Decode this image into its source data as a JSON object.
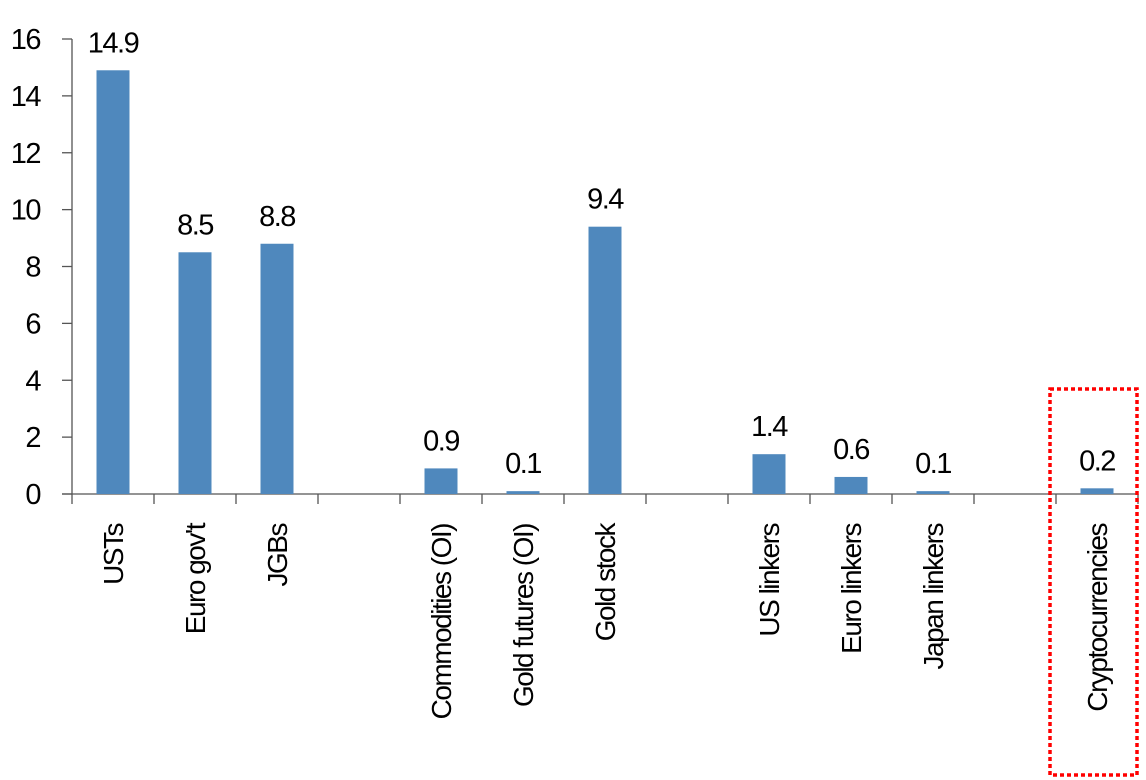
{
  "chart_data": {
    "type": "bar",
    "categories": [
      "USTs",
      "Euro gov't",
      "JGBs",
      "",
      "Commodities (OI)",
      "Gold futures (OI)",
      "Gold stock",
      "",
      "US linkers",
      "Euro linkers",
      "Japan linkers",
      "",
      "Cryptocurrencies"
    ],
    "values": [
      14.9,
      8.5,
      8.8,
      null,
      0.9,
      0.1,
      9.4,
      null,
      1.4,
      0.6,
      0.1,
      null,
      0.2
    ],
    "data_labels": [
      "14.9",
      "8.5",
      "8.8",
      "",
      "0.9",
      "0.1",
      "9.4",
      "",
      "1.4",
      "0.6",
      "0.1",
      "",
      "0.2"
    ],
    "title": "",
    "xlabel": "",
    "ylabel": "",
    "ylim": [
      0,
      16
    ],
    "yticks": [
      "0",
      "2",
      "4",
      "6",
      "8",
      "10",
      "12",
      "14",
      "16"
    ],
    "grid": false,
    "legend": "none",
    "bar_color": "#4f88bd",
    "highlight": {
      "category": "Cryptocurrencies",
      "style": "dotted box",
      "color": "#ff0000"
    }
  }
}
